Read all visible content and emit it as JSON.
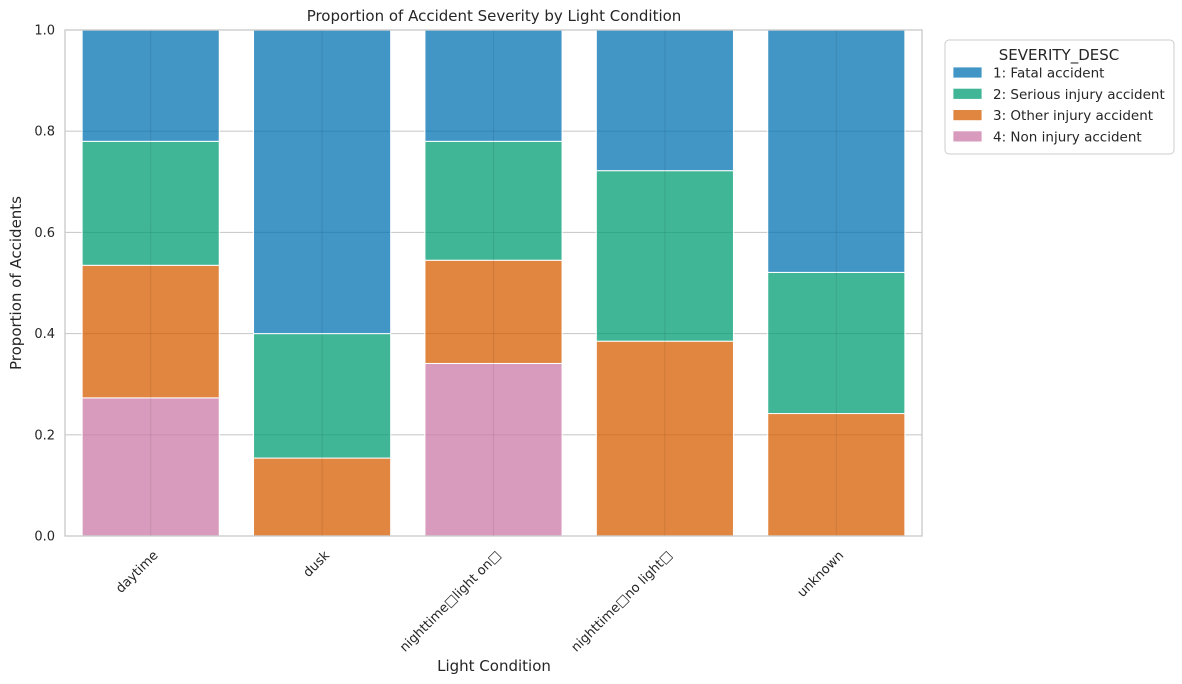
{
  "chart_data": {
    "type": "bar",
    "stacked": true,
    "title": "Proportion of Accident Severity by Light Condition",
    "xlabel": "Light Condition",
    "ylabel": "Proportion of Accidents",
    "ylim": [
      0,
      1
    ],
    "yticks": [
      "0.0",
      "0.2",
      "0.4",
      "0.6",
      "0.8",
      "1.0"
    ],
    "categories": [
      "daytime",
      "dusk",
      "nighttime□light on□",
      "nighttime□no light□",
      "unknown"
    ],
    "grid": true,
    "legend": {
      "title": "SEVERITY_DESC",
      "placement": "outside top-right"
    },
    "series": [
      {
        "name": "4: Non injury accident",
        "color": "#cc79a7",
        "values": [
          0.273,
          0.0,
          0.341,
          0.0,
          0.0
        ]
      },
      {
        "name": "3: Other injury accident",
        "color": "#d55e00",
        "values": [
          0.262,
          0.154,
          0.204,
          0.385,
          0.242
        ]
      },
      {
        "name": "2: Serious injury accident",
        "color": "#029e73",
        "values": [
          0.245,
          0.246,
          0.235,
          0.337,
          0.279
        ]
      },
      {
        "name": "1: Fatal accident",
        "color": "#0173b2",
        "values": [
          0.22,
          0.6,
          0.22,
          0.278,
          0.479
        ]
      }
    ]
  }
}
